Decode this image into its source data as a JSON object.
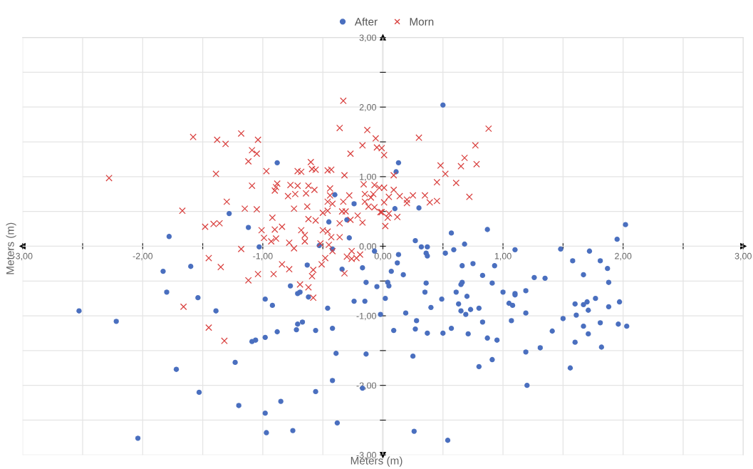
{
  "chart_data": {
    "type": "scatter",
    "xlabel": "Meters (m)",
    "ylabel": "Meters (m)",
    "legend": "top",
    "grid": true,
    "xlim": [
      -3,
      3
    ],
    "ylim": [
      -3,
      3
    ],
    "xticks": [
      {
        "value": -3,
        "label": "-3,00"
      },
      {
        "value": -2.5,
        "label": null
      },
      {
        "value": -2,
        "label": "-2,00"
      },
      {
        "value": -1.5,
        "label": null
      },
      {
        "value": -1,
        "label": "-1,00"
      },
      {
        "value": -0.5,
        "label": null
      },
      {
        "value": 0,
        "label": "0,00"
      },
      {
        "value": 0.5,
        "label": null
      },
      {
        "value": 1,
        "label": "1,00"
      },
      {
        "value": 1.5,
        "label": null
      },
      {
        "value": 2,
        "label": "2,00"
      },
      {
        "value": 2.5,
        "label": null
      },
      {
        "value": 3,
        "label": "3,00"
      }
    ],
    "yticks": [
      {
        "value": -3,
        "label": "-3,00"
      },
      {
        "value": -2.5,
        "label": null
      },
      {
        "value": -2,
        "label": "-2,00"
      },
      {
        "value": -1.5,
        "label": null
      },
      {
        "value": -1,
        "label": "-1,00"
      },
      {
        "value": -0.5,
        "label": null
      },
      {
        "value": 0,
        "label": "0,00"
      },
      {
        "value": 0.5,
        "label": null
      },
      {
        "value": 1,
        "label": "1,00"
      },
      {
        "value": 1.5,
        "label": null
      },
      {
        "value": 2,
        "label": "2,00"
      },
      {
        "value": 2.5,
        "label": null
      },
      {
        "value": 3,
        "label": "3,00"
      }
    ],
    "series": [
      {
        "name": "After",
        "color": "#4a6fbf",
        "marker": "circle",
        "x": [
          -1.78,
          -1.83,
          -1.6,
          -1.8,
          -1.54,
          -2.53,
          -2.22,
          -1.72,
          -1.53,
          -2.04,
          -1.28,
          -0.88,
          -1.12,
          -1.03,
          -0.4,
          -0.24,
          -0.45,
          -0.3,
          -0.28,
          -0.53,
          -0.42,
          -0.07,
          -0.63,
          -0.34,
          -0.17,
          -0.14,
          -0.05,
          -0.77,
          -0.71,
          -0.69,
          -0.62,
          -0.98,
          -0.92,
          -0.46,
          -0.24,
          -0.15,
          -0.02,
          -1.39,
          -0.67,
          -0.71,
          -0.72,
          -0.88,
          -0.56,
          -0.42,
          -0.98,
          -1.06,
          -1.09,
          -0.39,
          -0.14,
          -1.23,
          -0.42,
          -0.17,
          -0.56,
          -0.85,
          -1.2,
          -0.98,
          -0.38,
          -0.97,
          -0.75,
          0.5,
          0.13,
          0.11,
          0.1,
          0.3,
          0.57,
          0.87,
          0.27,
          0.32,
          0.37,
          0.68,
          0.36,
          0.37,
          0.52,
          0.59,
          0.13,
          0.12,
          0.07,
          0.17,
          0.66,
          0.75,
          0.93,
          0.83,
          0.04,
          0.05,
          0.36,
          0.35,
          0.65,
          0.66,
          0.61,
          0.91,
          1.0,
          0.02,
          0.49,
          0.7,
          1.1,
          1.1,
          1.19,
          1.26,
          1.35,
          0.4,
          0.63,
          0.65,
          0.69,
          0.73,
          0.8,
          1.05,
          1.08,
          1.19,
          0.19,
          0.28,
          0.83,
          1.07,
          0.09,
          0.27,
          0.37,
          0.5,
          0.57,
          0.71,
          0.87,
          0.95,
          1.41,
          0.25,
          0.8,
          0.91,
          1.19,
          1.31,
          1.2,
          0.26,
          0.54,
          1.5,
          2.02,
          1.95,
          1.48,
          1.72,
          1.58,
          1.81,
          1.87,
          1.67,
          1.88,
          1.77,
          1.6,
          1.67,
          1.7,
          1.97,
          1.71,
          1.88,
          1.61,
          1.81,
          1.96,
          2.03,
          1.67,
          1.71,
          1.6,
          1.82,
          1.56,
          1.1
        ],
        "values": [
          0.14,
          -0.36,
          -0.29,
          -0.66,
          -0.74,
          -0.93,
          -1.08,
          -1.77,
          -2.1,
          -2.76,
          0.47,
          1.2,
          0.27,
          -0.01,
          0.74,
          0.61,
          0.35,
          0.38,
          0.12,
          0.01,
          -0.04,
          -0.07,
          -0.27,
          -0.33,
          -0.31,
          -0.52,
          -0.58,
          -0.57,
          -0.68,
          -0.66,
          -0.73,
          -0.76,
          -0.85,
          -0.89,
          -0.79,
          -0.79,
          -0.98,
          -0.93,
          -1.09,
          -1.12,
          -1.2,
          -1.23,
          -1.21,
          -1.18,
          -1.31,
          -1.35,
          -1.37,
          -1.54,
          -1.55,
          -1.67,
          -1.93,
          -2.04,
          -2.09,
          -2.23,
          -2.29,
          -2.4,
          -2.54,
          -2.68,
          -2.65,
          2.03,
          1.2,
          1.07,
          0.54,
          0.55,
          0.19,
          0.24,
          0.08,
          -0.01,
          -0.01,
          0.03,
          -0.1,
          -0.14,
          -0.1,
          -0.05,
          -0.12,
          -0.24,
          -0.36,
          -0.41,
          -0.28,
          -0.25,
          -0.28,
          -0.42,
          -0.52,
          -0.57,
          -0.53,
          -0.66,
          -0.55,
          -0.52,
          -0.66,
          -0.53,
          -0.66,
          -0.75,
          -0.76,
          -0.72,
          -0.68,
          -0.7,
          -0.64,
          -0.45,
          -0.46,
          -0.88,
          -0.83,
          -0.93,
          -0.98,
          -0.91,
          -0.89,
          -0.82,
          -0.85,
          -0.96,
          -0.96,
          -1.07,
          -1.09,
          -1.07,
          -1.21,
          -1.19,
          -1.25,
          -1.25,
          -1.18,
          -1.26,
          -1.32,
          -1.35,
          -1.22,
          -1.58,
          -1.73,
          -1.63,
          -1.52,
          -1.46,
          -2.0,
          -2.66,
          -2.79,
          -1.04,
          0.31,
          0.1,
          -0.04,
          -0.07,
          -0.21,
          -0.21,
          -0.32,
          -0.41,
          -0.52,
          -0.75,
          -0.83,
          -0.84,
          -0.8,
          -0.8,
          -0.92,
          -0.87,
          -0.99,
          -1.1,
          -1.12,
          -1.15,
          -1.15,
          -1.26,
          -1.38,
          -1.45,
          -1.75,
          -0.05
        ]
      },
      {
        "name": "Morn",
        "color": "#d9413f",
        "marker": "cross",
        "x": [
          -1.58,
          -2.28,
          -1.67,
          -1.48,
          -1.66,
          -0.33,
          -1.18,
          -1.38,
          -1.31,
          -1.04,
          -0.36,
          -0.13,
          -0.06,
          -1.09,
          -1.05,
          -0.17,
          -0.05,
          -0.27,
          -1.12,
          -0.6,
          -1.39,
          -0.97,
          -0.71,
          -0.68,
          -0.59,
          -0.56,
          -0.46,
          -0.43,
          -0.32,
          -1.09,
          -0.88,
          -0.89,
          -0.9,
          -0.77,
          -0.71,
          -0.62,
          -0.57,
          -0.64,
          -0.44,
          -0.16,
          -0.07,
          -0.79,
          -0.73,
          -0.44,
          -0.46,
          -0.42,
          -0.33,
          -0.28,
          -0.15,
          -0.1,
          -0.08,
          -0.15,
          -0.12,
          -0.07,
          -0.01,
          -1.3,
          -1.15,
          -1.05,
          -0.74,
          -0.63,
          -0.34,
          -0.31,
          -0.5,
          -0.46,
          -0.21,
          -0.17,
          -0.92,
          -0.62,
          -0.56,
          -0.36,
          -0.27,
          -1.41,
          -1.36,
          -1.01,
          -0.9,
          -0.84,
          -0.68,
          -0.65,
          -0.5,
          -0.46,
          -0.43,
          -0.36,
          -0.99,
          -0.93,
          -0.89,
          -0.78,
          -0.65,
          -0.52,
          -0.45,
          -1.18,
          -0.74,
          -1.45,
          -0.42,
          -0.26,
          -0.3,
          -0.26,
          -0.22,
          -0.19,
          -0.48,
          -0.51,
          -0.84,
          -0.78,
          -0.58,
          -0.59,
          -0.32,
          -1.35,
          -1.04,
          -0.91,
          -1.12,
          -0.69,
          -0.62,
          -0.58,
          -1.45,
          -1.32,
          0.3,
          0.88,
          0.77,
          -0.01,
          0.01,
          0.68,
          0.48,
          0.65,
          0.78,
          0.52,
          0.09,
          0.45,
          0.61,
          -0.03,
          0.01,
          0.09,
          0.05,
          0.14,
          0.2,
          0.2,
          0.25,
          0.35,
          0.39,
          0.45,
          0.72,
          0.01,
          -0.02,
          0.05,
          0.12,
          0.04,
          0.02
        ],
        "values": [
          1.57,
          0.98,
          0.51,
          0.28,
          -0.87,
          2.09,
          1.62,
          1.53,
          1.47,
          1.53,
          1.7,
          1.67,
          1.55,
          1.38,
          1.33,
          1.45,
          1.42,
          1.33,
          1.22,
          1.21,
          1.04,
          1.08,
          1.08,
          1.07,
          1.11,
          1.1,
          1.09,
          1.1,
          1.02,
          0.87,
          0.9,
          0.85,
          0.8,
          0.88,
          0.87,
          0.87,
          0.81,
          0.76,
          0.83,
          0.89,
          0.88,
          0.72,
          0.75,
          0.73,
          0.64,
          0.61,
          0.64,
          0.73,
          0.75,
          0.7,
          0.75,
          0.64,
          0.57,
          0.56,
          0.49,
          0.64,
          0.54,
          0.53,
          0.54,
          0.57,
          0.5,
          0.5,
          0.48,
          0.51,
          0.44,
          0.34,
          0.41,
          0.39,
          0.37,
          0.33,
          0.38,
          0.32,
          0.33,
          0.23,
          0.24,
          0.28,
          0.23,
          0.16,
          0.23,
          0.21,
          0.13,
          0.13,
          0.12,
          0.07,
          0.11,
          0.05,
          0.07,
          0.04,
          0.02,
          -0.04,
          -0.03,
          -0.17,
          -0.07,
          -0.07,
          -0.15,
          -0.18,
          -0.17,
          -0.12,
          -0.17,
          -0.26,
          -0.26,
          -0.33,
          -0.34,
          -0.43,
          -0.39,
          -0.3,
          -0.4,
          -0.4,
          -0.49,
          -0.55,
          -0.59,
          -0.74,
          -1.17,
          -1.36,
          1.56,
          1.69,
          1.45,
          1.41,
          1.31,
          1.27,
          1.16,
          1.15,
          1.18,
          1.04,
          1.02,
          0.92,
          0.91,
          0.84,
          0.84,
          0.81,
          0.71,
          0.72,
          0.67,
          0.62,
          0.73,
          0.73,
          0.63,
          0.65,
          0.71,
          0.63,
          0.49,
          0.47,
          0.42,
          0.41,
          0.29
        ]
      }
    ]
  }
}
